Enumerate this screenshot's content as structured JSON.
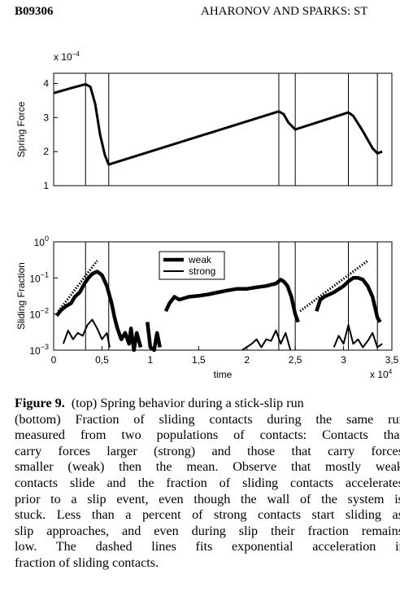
{
  "header": {
    "left": "B09306",
    "right": "AHARONOV AND SPARKS: ST"
  },
  "chart_data": [
    {
      "type": "line",
      "ylabel": "Spring Force",
      "y_multiplier": {
        "base": "x 10",
        "exp": "−4"
      },
      "xlim": [
        0,
        3.5
      ],
      "ylim": [
        1,
        4.3
      ],
      "yticks": [
        1,
        2,
        3,
        4
      ],
      "vlines": [
        0.33,
        0.57,
        2.33,
        2.5,
        3.05,
        3.35
      ],
      "series": [
        {
          "color": "#000000",
          "line_width": 3,
          "x": [
            0,
            0.1,
            0.2,
            0.33,
            0.38,
            0.43,
            0.48,
            0.53,
            0.57,
            2.33,
            2.38,
            2.43,
            2.5,
            3.05,
            3.1,
            3.2,
            3.3,
            3.35,
            3.4
          ],
          "values": [
            3.72,
            3.8,
            3.88,
            3.98,
            3.9,
            3.4,
            2.5,
            1.9,
            1.62,
            3.18,
            3.1,
            2.85,
            2.65,
            3.15,
            3.05,
            2.6,
            2.1,
            1.95,
            2.0
          ]
        }
      ]
    },
    {
      "type": "line",
      "log_y": true,
      "ylabel": "Sliding Fraction",
      "xlabel": "time",
      "x_multiplier": {
        "base": "x 10",
        "exp": "4"
      },
      "xlim": [
        0,
        3.5
      ],
      "ylim": [
        0.001,
        1
      ],
      "xticks": [
        0,
        {
          "value": 0.5,
          "label": "0,5"
        },
        1,
        {
          "value": 1.5,
          "label": "1,5"
        },
        2,
        {
          "value": 2.5,
          "label": "2,5"
        },
        3,
        {
          "value": 3.5,
          "label": "3,5"
        }
      ],
      "yticks": [
        {
          "value": 0.001,
          "label": "10",
          "exp": "−3"
        },
        {
          "value": 0.01,
          "label": "10",
          "exp": "−2"
        },
        {
          "value": 0.1,
          "label": "10",
          "exp": "−1"
        },
        {
          "value": 1,
          "label": "10",
          "exp": "0"
        }
      ],
      "vlines": [
        0.33,
        0.57,
        2.33,
        2.5,
        3.05,
        3.35
      ],
      "legend": "upper center",
      "fits": [
        {
          "x": [
            0.05,
            0.45
          ],
          "y": [
            0.012,
            0.3
          ]
        },
        {
          "x": [
            2.55,
            3.25
          ],
          "y": [
            0.012,
            0.3
          ]
        }
      ],
      "series": [
        {
          "name": "weak",
          "color": "#000000",
          "line_width": 4.5,
          "x": [
            0.03,
            0.08,
            0.12,
            0.18,
            0.22,
            0.27,
            0.32,
            0.36,
            0.4,
            0.45,
            0.5,
            0.55,
            0.6,
            0.63,
            0.66,
            0.7,
            0.74,
            0.78,
            0.8,
            0.83,
            0.86,
            0.9,
            0.93,
            0.97,
            1.0,
            1.04,
            1.07,
            1.1,
            1.13,
            1.16,
            1.2,
            1.25,
            1.3,
            1.4,
            1.5,
            1.6,
            1.7,
            1.8,
            1.9,
            2.0,
            2.1,
            2.2,
            2.3,
            2.35,
            2.38,
            2.42,
            2.46,
            2.5,
            2.53,
            2.58,
            2.72,
            2.76,
            2.8,
            2.9,
            3.0,
            3.05,
            3.1,
            3.15,
            3.2,
            3.25,
            3.3,
            3.35,
            3.38
          ],
          "values": [
            0.009,
            0.013,
            0.016,
            0.02,
            0.03,
            0.04,
            0.07,
            0.1,
            0.13,
            0.15,
            0.12,
            0.06,
            0.02,
            0.008,
            0.004,
            0.002,
            0.003,
            0.0015,
            0.004,
            0.001,
            0.003,
            0.0012,
            null,
            0.006,
            0.0012,
            0.001,
            0.003,
            0.0012,
            null,
            0.012,
            0.02,
            0.03,
            0.025,
            0.03,
            0.032,
            0.035,
            0.04,
            0.045,
            0.05,
            0.05,
            0.055,
            0.06,
            0.07,
            0.09,
            0.08,
            0.06,
            0.03,
            0.01,
            0.006,
            null,
            0.012,
            0.025,
            0.03,
            0.04,
            0.06,
            0.08,
            0.1,
            0.1,
            0.09,
            0.06,
            0.03,
            0.008,
            0.006
          ]
        },
        {
          "name": "strong",
          "color": "#000000",
          "line_width": 2,
          "x": [
            0.1,
            0.15,
            0.2,
            0.25,
            0.3,
            0.35,
            0.4,
            0.45,
            0.5,
            0.55,
            0.58,
            0.6,
            1.95,
            2.05,
            2.1,
            2.15,
            2.2,
            2.25,
            2.3,
            2.35,
            2.4,
            2.45,
            2.5,
            2.9,
            2.95,
            3.0,
            3.05,
            3.1,
            3.15,
            3.2,
            3.25,
            3.3,
            3.35,
            3.4
          ],
          "values": [
            0.0015,
            0.0035,
            0.002,
            0.003,
            0.0025,
            0.005,
            0.007,
            0.004,
            0.002,
            0.003,
            0.0012,
            null,
            0.001,
            0.0015,
            0.002,
            0.0012,
            0.002,
            0.0018,
            0.0035,
            0.0015,
            0.003,
            0.001,
            null,
            0.0012,
            0.0025,
            0.0015,
            0.005,
            0.0015,
            0.002,
            0.0012,
            0.0018,
            0.003,
            0.0012,
            0.0015
          ]
        }
      ]
    }
  ],
  "caption": {
    "label": "Figure 9.",
    "lines": [
      "(top) Spring behavior during a stick-slip run",
      "(bottom) Fraction of sliding contacts during the same rur",
      "measured from two populations of contacts: Contacts that",
      "carry forces larger (strong) and those that carry forces",
      "smaller (weak) then the mean. Observe that mostly weak",
      "contacts slide and the fraction of sliding contacts accelerates",
      "prior to a slip event, even though the wall of the system is",
      "stuck. Less than a percent of strong contacts start sliding as",
      "slip approaches, and even during slip their fraction remains",
      "low. The dashed lines fits exponential acceleration ir",
      "fraction of sliding contacts."
    ]
  }
}
